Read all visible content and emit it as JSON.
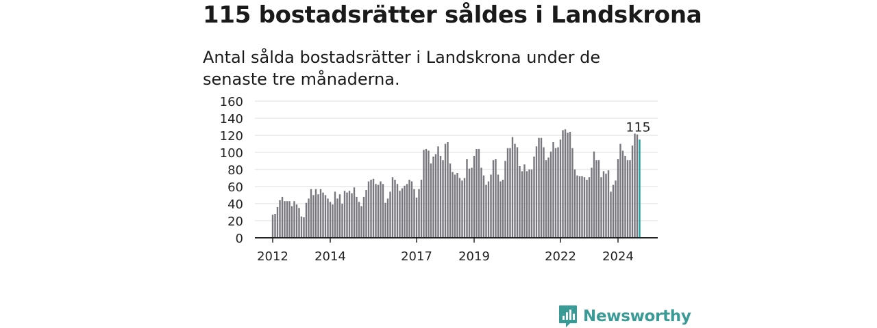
{
  "header": {
    "title": "115 bostadsrätter såldes i Landskrona",
    "subtitle": "Antal sålda bostadsrätter i Landskrona under de senaste tre månaderna."
  },
  "brand": {
    "name": "Newsworthy",
    "color": "#3a9a96",
    "icon": "newsworthy-logo-icon"
  },
  "colors": {
    "bar": "#77777d",
    "highlight": "#1e9e9e",
    "grid": "#dddddd",
    "axis": "#222222"
  },
  "chart_data": {
    "type": "bar",
    "title": "115 bostadsrätter såldes i Landskrona",
    "subtitle": "Antal sålda bostadsrätter i Landskrona under de senaste tre månaderna.",
    "xlabel": "",
    "ylabel": "",
    "ylim": [
      0,
      160
    ],
    "y_ticks": [
      0,
      20,
      40,
      60,
      80,
      100,
      120,
      140,
      160
    ],
    "grid": true,
    "x_start": "2012-01",
    "x_tick_labels": [
      {
        "label": "2012",
        "index": 0
      },
      {
        "label": "2014",
        "index": 24
      },
      {
        "label": "2017",
        "index": 60
      },
      {
        "label": "2019",
        "index": 84
      },
      {
        "label": "2022",
        "index": 120
      },
      {
        "label": "2024",
        "index": 144
      }
    ],
    "series": [
      {
        "values": [
          27,
          28,
          36,
          44,
          48,
          43,
          43,
          43,
          37,
          43,
          39,
          35,
          25,
          24,
          41,
          46,
          57,
          50,
          57,
          51,
          57,
          53,
          50,
          46,
          42,
          39,
          54,
          46,
          51,
          40,
          55,
          53,
          55,
          52,
          59,
          48,
          42,
          37,
          48,
          56,
          66,
          68,
          69,
          63,
          62,
          66,
          63,
          41,
          46,
          54,
          71,
          68,
          63,
          55,
          58,
          61,
          63,
          68,
          66,
          57,
          47,
          57,
          68,
          103,
          104,
          102,
          87,
          95,
          98,
          107,
          96,
          91,
          110,
          112,
          87,
          77,
          74,
          76,
          70,
          67,
          70,
          92,
          81,
          82,
          96,
          104,
          104,
          82,
          73,
          62,
          66,
          74,
          91,
          92,
          74,
          66,
          68,
          90,
          105,
          105,
          118,
          110,
          106,
          84,
          78,
          86,
          78,
          80,
          80,
          95,
          107,
          117,
          117,
          106,
          91,
          94,
          101,
          112,
          105,
          106,
          115,
          126,
          127,
          123,
          124,
          105,
          80,
          73,
          72,
          72,
          71,
          68,
          71,
          82,
          101,
          91,
          91,
          71,
          78,
          75,
          79,
          54,
          62,
          67,
          92,
          110,
          102,
          96,
          91,
          91,
          108,
          122,
          121,
          115
        ],
        "highlight_value": 115,
        "highlight_label": "115"
      }
    ]
  }
}
